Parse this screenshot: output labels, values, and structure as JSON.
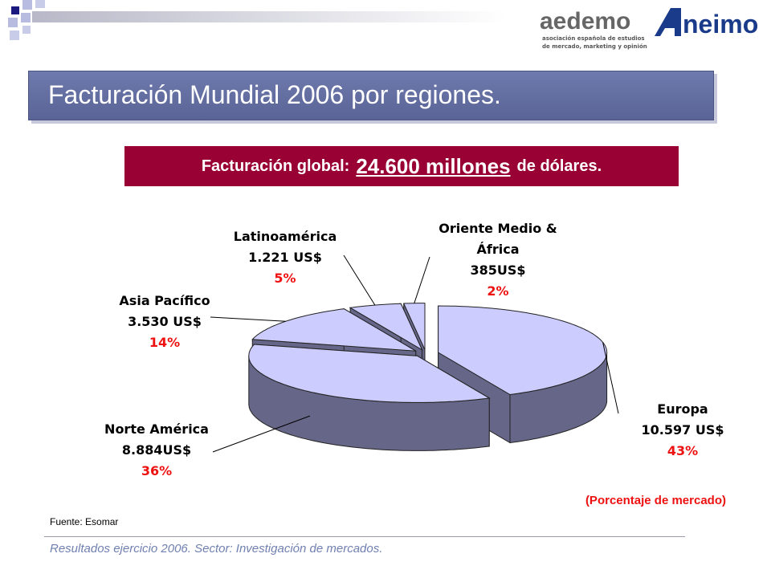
{
  "header": {
    "logo": "aedemo",
    "logo_line_1": "asociación española de estudios",
    "logo_line_2": "de mercado, marketing y opinión",
    "logo_2": "neimo",
    "title": "Facturación Mundial 2006 por regiones.",
    "banner_prefix": "Facturación global:",
    "banner_amount": "24.600 millones",
    "banner_suffix": "de dólares."
  },
  "chart_data": {
    "type": "pie",
    "categories": [
      "Europa",
      "Norte América",
      "Asia Pacífico",
      "Latinoamérica",
      "Oriente Medio & África"
    ],
    "amounts": [
      "10.597 US$",
      "8.884US$",
      "3.530 US$",
      "1.221 US$",
      "385US$"
    ],
    "values": [
      43,
      36,
      14,
      5,
      2
    ],
    "value_labels": [
      "43%",
      "36%",
      "14%",
      "5%",
      "2%"
    ],
    "color": "#ccccff",
    "side_color": "#666688",
    "note": "(Porcentaje de mercado)"
  },
  "footer": {
    "source": "Fuente: Esomar",
    "text": "Resultados ejercicio 2006. Sector: Investigación de mercados."
  }
}
